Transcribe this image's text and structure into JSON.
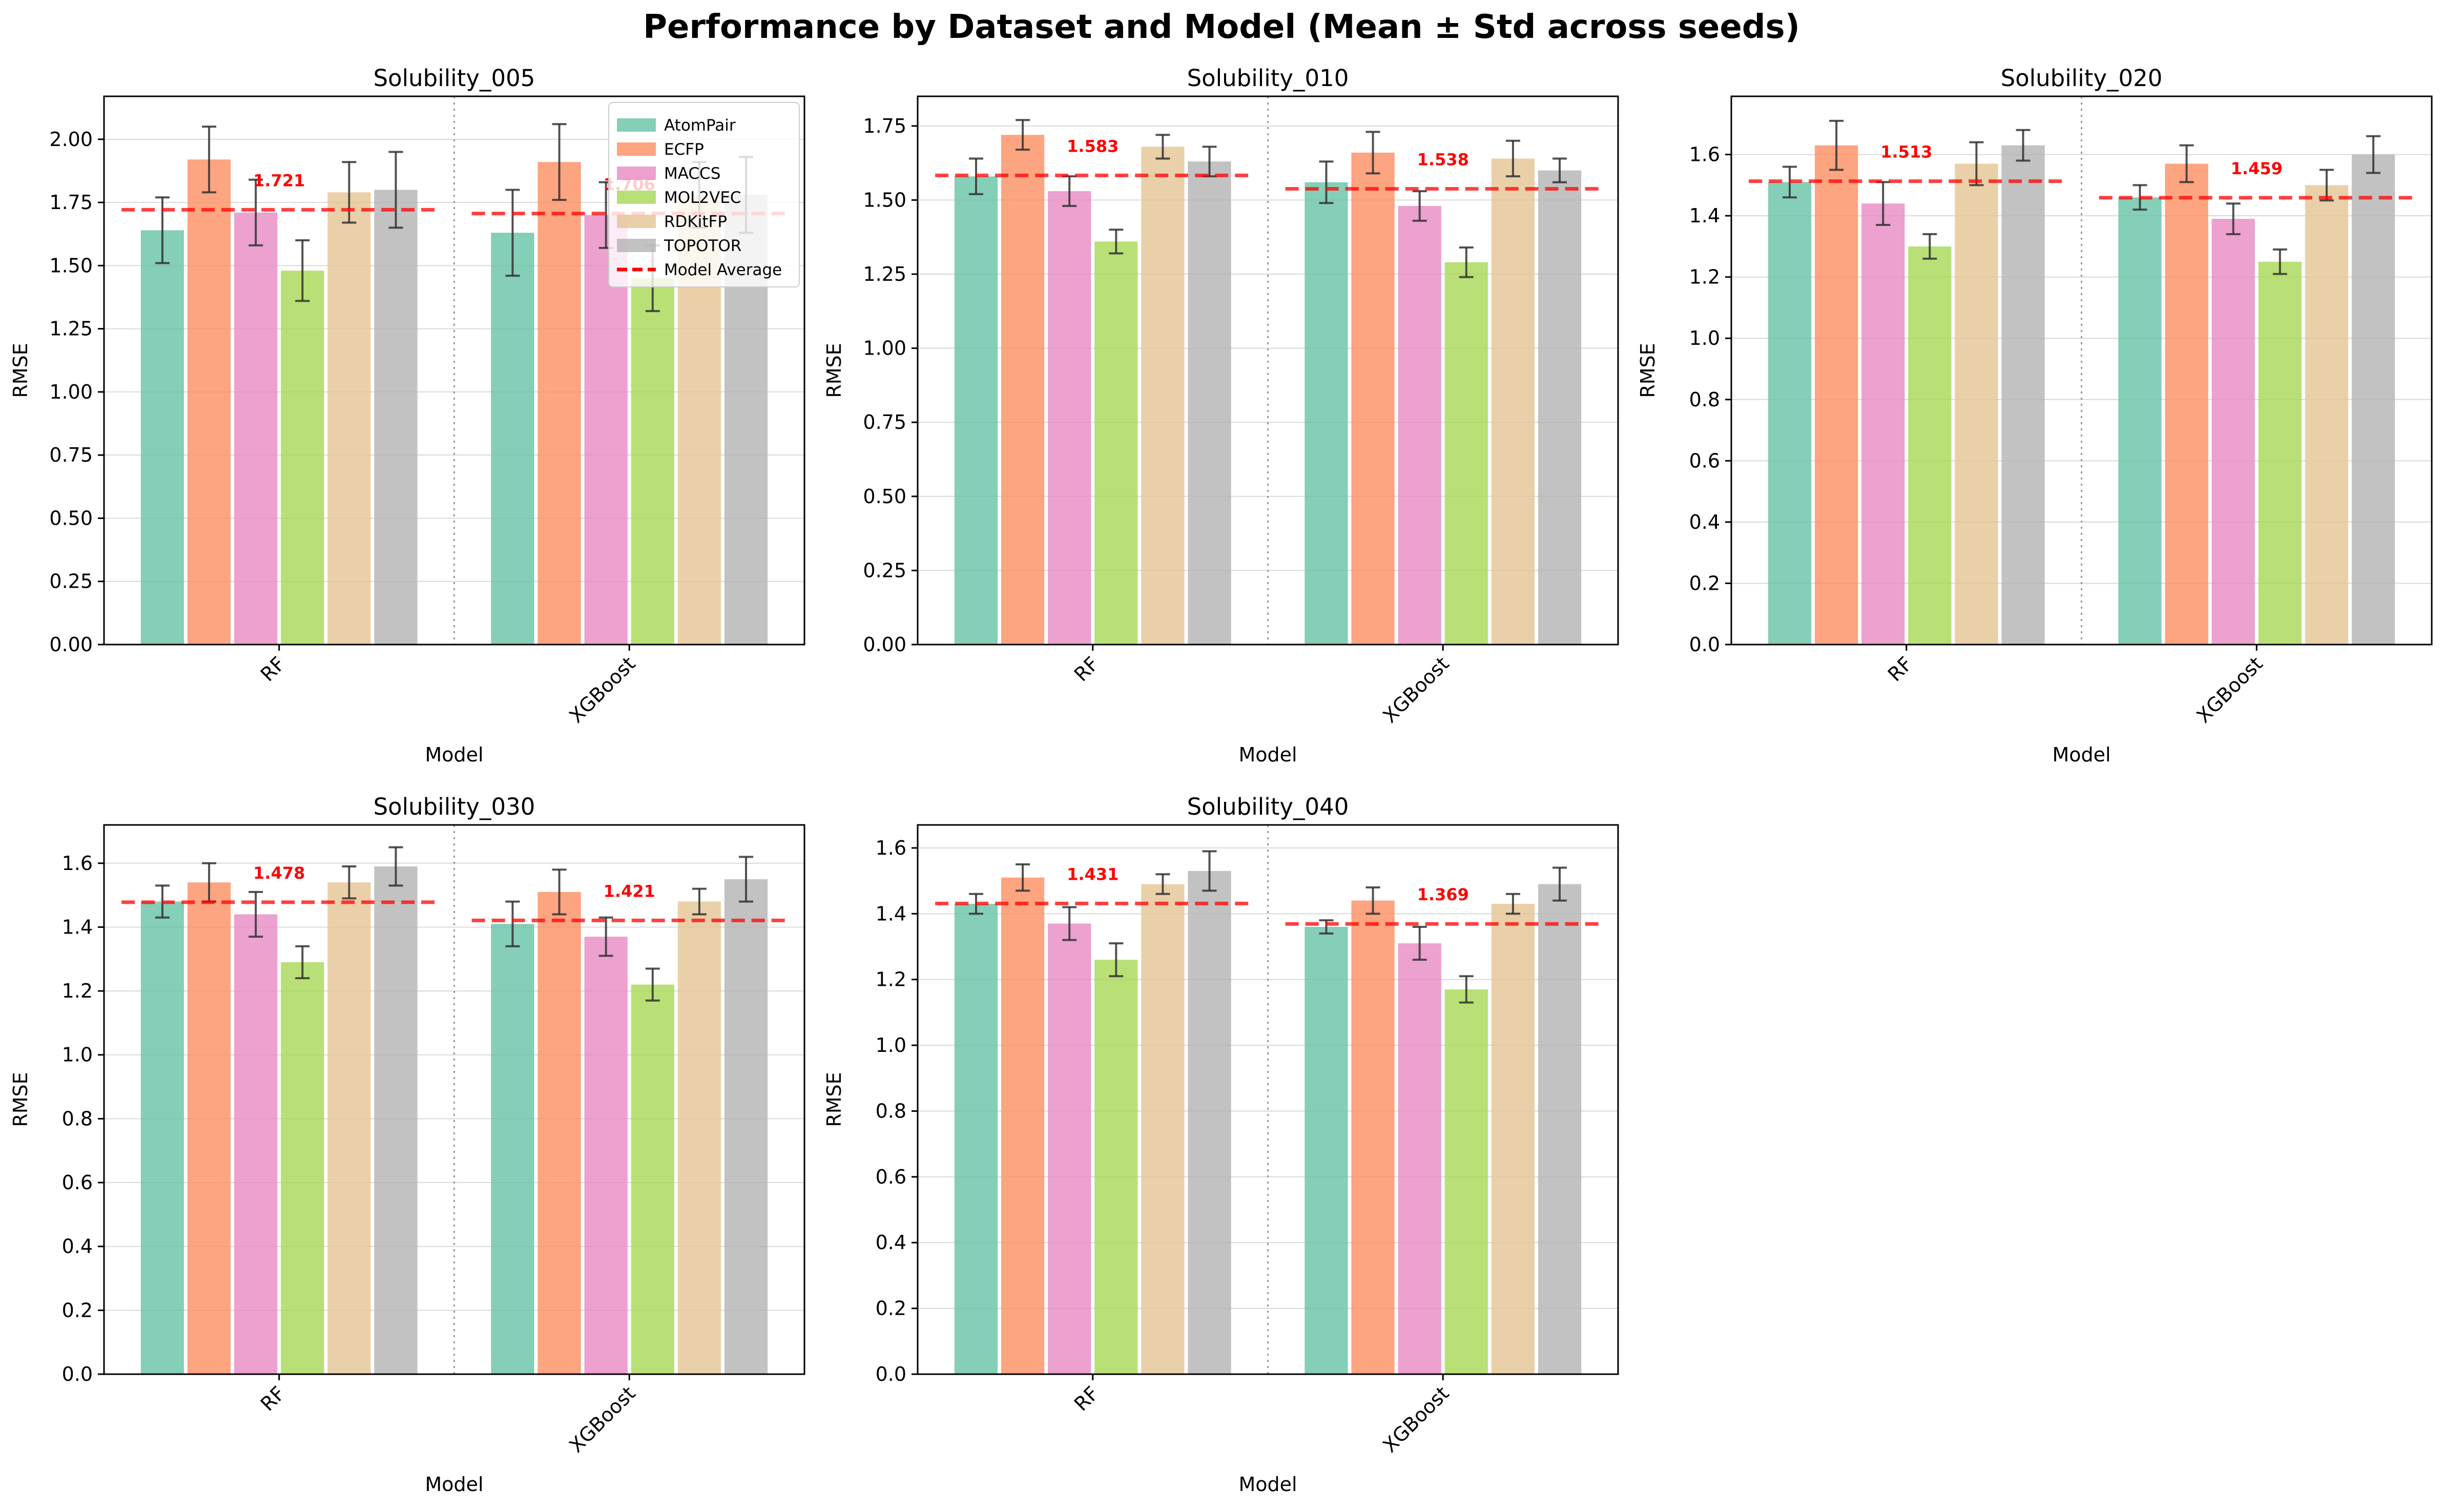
{
  "figure": {
    "title": "Performance by Dataset and Model (Mean ± Std across seeds)"
  },
  "legend": {
    "placement": "top-right of first panel",
    "items": [
      "AtomPair",
      "ECFP",
      "MACCS",
      "MOL2VEC",
      "RDKitFP",
      "TOPOTOR",
      "Model Average"
    ]
  },
  "colors": {
    "AtomPair": "#66c2a5",
    "ECFP": "#fc8d62",
    "MACCS": "#e78ac3",
    "MOL2VEC": "#a6d854",
    "RDKitFP": "#e5c494",
    "TOPOTOR": "#b3b3b3",
    "average_line": "#ff0000",
    "error_bar": "#333333"
  },
  "chart_data": [
    {
      "type": "bar",
      "title": "Solubility_005",
      "xlabel": "Model",
      "ylabel": "RMSE",
      "categories": [
        "RF",
        "XGBoost"
      ],
      "ylim": [
        0,
        2.17
      ],
      "yticks": [
        0.0,
        0.25,
        0.5,
        0.75,
        1.0,
        1.25,
        1.5,
        1.75,
        2.0
      ],
      "ytick_labels": [
        "0.00",
        "0.25",
        "0.50",
        "0.75",
        "1.00",
        "1.25",
        "1.50",
        "1.75",
        "2.00"
      ],
      "grid": true,
      "series": [
        {
          "name": "AtomPair",
          "values": [
            1.64,
            1.63
          ],
          "errors": [
            0.13,
            0.17
          ]
        },
        {
          "name": "ECFP",
          "values": [
            1.92,
            1.91
          ],
          "errors": [
            0.13,
            0.15
          ]
        },
        {
          "name": "MACCS",
          "values": [
            1.71,
            1.7
          ],
          "errors": [
            0.13,
            0.13
          ]
        },
        {
          "name": "MOL2VEC",
          "values": [
            1.48,
            1.45
          ],
          "errors": [
            0.12,
            0.13
          ]
        },
        {
          "name": "RDKitFP",
          "values": [
            1.79,
            1.78
          ],
          "errors": [
            0.12,
            0.13
          ]
        },
        {
          "name": "TOPOTOR",
          "values": [
            1.8,
            1.78
          ],
          "errors": [
            0.15,
            0.15
          ]
        }
      ],
      "model_average": [
        1.721,
        1.706
      ],
      "average_labels": [
        "1.721",
        "1.706"
      ]
    },
    {
      "type": "bar",
      "title": "Solubility_010",
      "xlabel": "Model",
      "ylabel": "RMSE",
      "categories": [
        "RF",
        "XGBoost"
      ],
      "ylim": [
        0,
        1.85
      ],
      "yticks": [
        0.0,
        0.25,
        0.5,
        0.75,
        1.0,
        1.25,
        1.5,
        1.75
      ],
      "ytick_labels": [
        "0.00",
        "0.25",
        "0.50",
        "0.75",
        "1.00",
        "1.25",
        "1.50",
        "1.75"
      ],
      "grid": true,
      "series": [
        {
          "name": "AtomPair",
          "values": [
            1.58,
            1.56
          ],
          "errors": [
            0.06,
            0.07
          ]
        },
        {
          "name": "ECFP",
          "values": [
            1.72,
            1.66
          ],
          "errors": [
            0.05,
            0.07
          ]
        },
        {
          "name": "MACCS",
          "values": [
            1.53,
            1.48
          ],
          "errors": [
            0.05,
            0.05
          ]
        },
        {
          "name": "MOL2VEC",
          "values": [
            1.36,
            1.29
          ],
          "errors": [
            0.04,
            0.05
          ]
        },
        {
          "name": "RDKitFP",
          "values": [
            1.68,
            1.64
          ],
          "errors": [
            0.04,
            0.06
          ]
        },
        {
          "name": "TOPOTOR",
          "values": [
            1.63,
            1.6
          ],
          "errors": [
            0.05,
            0.04
          ]
        }
      ],
      "model_average": [
        1.583,
        1.538
      ],
      "average_labels": [
        "1.583",
        "1.538"
      ]
    },
    {
      "type": "bar",
      "title": "Solubility_020",
      "xlabel": "Model",
      "ylabel": "RMSE",
      "categories": [
        "RF",
        "XGBoost"
      ],
      "ylim": [
        0,
        1.79
      ],
      "yticks": [
        0.0,
        0.2,
        0.4,
        0.6,
        0.8,
        1.0,
        1.2,
        1.4,
        1.6
      ],
      "ytick_labels": [
        "0.0",
        "0.2",
        "0.4",
        "0.6",
        "0.8",
        "1.0",
        "1.2",
        "1.4",
        "1.6"
      ],
      "grid": true,
      "series": [
        {
          "name": "AtomPair",
          "values": [
            1.51,
            1.46
          ],
          "errors": [
            0.05,
            0.04
          ]
        },
        {
          "name": "ECFP",
          "values": [
            1.63,
            1.57
          ],
          "errors": [
            0.08,
            0.06
          ]
        },
        {
          "name": "MACCS",
          "values": [
            1.44,
            1.39
          ],
          "errors": [
            0.07,
            0.05
          ]
        },
        {
          "name": "MOL2VEC",
          "values": [
            1.3,
            1.25
          ],
          "errors": [
            0.04,
            0.04
          ]
        },
        {
          "name": "RDKitFP",
          "values": [
            1.57,
            1.5
          ],
          "errors": [
            0.07,
            0.05
          ]
        },
        {
          "name": "TOPOTOR",
          "values": [
            1.63,
            1.6
          ],
          "errors": [
            0.05,
            0.06
          ]
        }
      ],
      "model_average": [
        1.513,
        1.459
      ],
      "average_labels": [
        "1.513",
        "1.459"
      ]
    },
    {
      "type": "bar",
      "title": "Solubility_030",
      "xlabel": "Model",
      "ylabel": "RMSE",
      "categories": [
        "RF",
        "XGBoost"
      ],
      "ylim": [
        0,
        1.72
      ],
      "yticks": [
        0.0,
        0.2,
        0.4,
        0.6,
        0.8,
        1.0,
        1.2,
        1.4,
        1.6
      ],
      "ytick_labels": [
        "0.0",
        "0.2",
        "0.4",
        "0.6",
        "0.8",
        "1.0",
        "1.2",
        "1.4",
        "1.6"
      ],
      "grid": true,
      "series": [
        {
          "name": "AtomPair",
          "values": [
            1.48,
            1.41
          ],
          "errors": [
            0.05,
            0.07
          ]
        },
        {
          "name": "ECFP",
          "values": [
            1.54,
            1.51
          ],
          "errors": [
            0.06,
            0.07
          ]
        },
        {
          "name": "MACCS",
          "values": [
            1.44,
            1.37
          ],
          "errors": [
            0.07,
            0.06
          ]
        },
        {
          "name": "MOL2VEC",
          "values": [
            1.29,
            1.22
          ],
          "errors": [
            0.05,
            0.05
          ]
        },
        {
          "name": "RDKitFP",
          "values": [
            1.54,
            1.48
          ],
          "errors": [
            0.05,
            0.04
          ]
        },
        {
          "name": "TOPOTOR",
          "values": [
            1.59,
            1.55
          ],
          "errors": [
            0.06,
            0.07
          ]
        }
      ],
      "model_average": [
        1.478,
        1.421
      ],
      "average_labels": [
        "1.478",
        "1.421"
      ]
    },
    {
      "type": "bar",
      "title": "Solubility_040",
      "xlabel": "Model",
      "ylabel": "RMSE",
      "categories": [
        "RF",
        "XGBoost"
      ],
      "ylim": [
        0,
        1.67
      ],
      "yticks": [
        0.0,
        0.2,
        0.4,
        0.6,
        0.8,
        1.0,
        1.2,
        1.4,
        1.6
      ],
      "ytick_labels": [
        "0.0",
        "0.2",
        "0.4",
        "0.6",
        "0.8",
        "1.0",
        "1.2",
        "1.4",
        "1.6"
      ],
      "grid": true,
      "series": [
        {
          "name": "AtomPair",
          "values": [
            1.43,
            1.36
          ],
          "errors": [
            0.03,
            0.02
          ]
        },
        {
          "name": "ECFP",
          "values": [
            1.51,
            1.44
          ],
          "errors": [
            0.04,
            0.04
          ]
        },
        {
          "name": "MACCS",
          "values": [
            1.37,
            1.31
          ],
          "errors": [
            0.05,
            0.05
          ]
        },
        {
          "name": "MOL2VEC",
          "values": [
            1.26,
            1.17
          ],
          "errors": [
            0.05,
            0.04
          ]
        },
        {
          "name": "RDKitFP",
          "values": [
            1.49,
            1.43
          ],
          "errors": [
            0.03,
            0.03
          ]
        },
        {
          "name": "TOPOTOR",
          "values": [
            1.53,
            1.49
          ],
          "errors": [
            0.06,
            0.05
          ]
        }
      ],
      "model_average": [
        1.431,
        1.369
      ],
      "average_labels": [
        "1.431",
        "1.369"
      ]
    }
  ]
}
